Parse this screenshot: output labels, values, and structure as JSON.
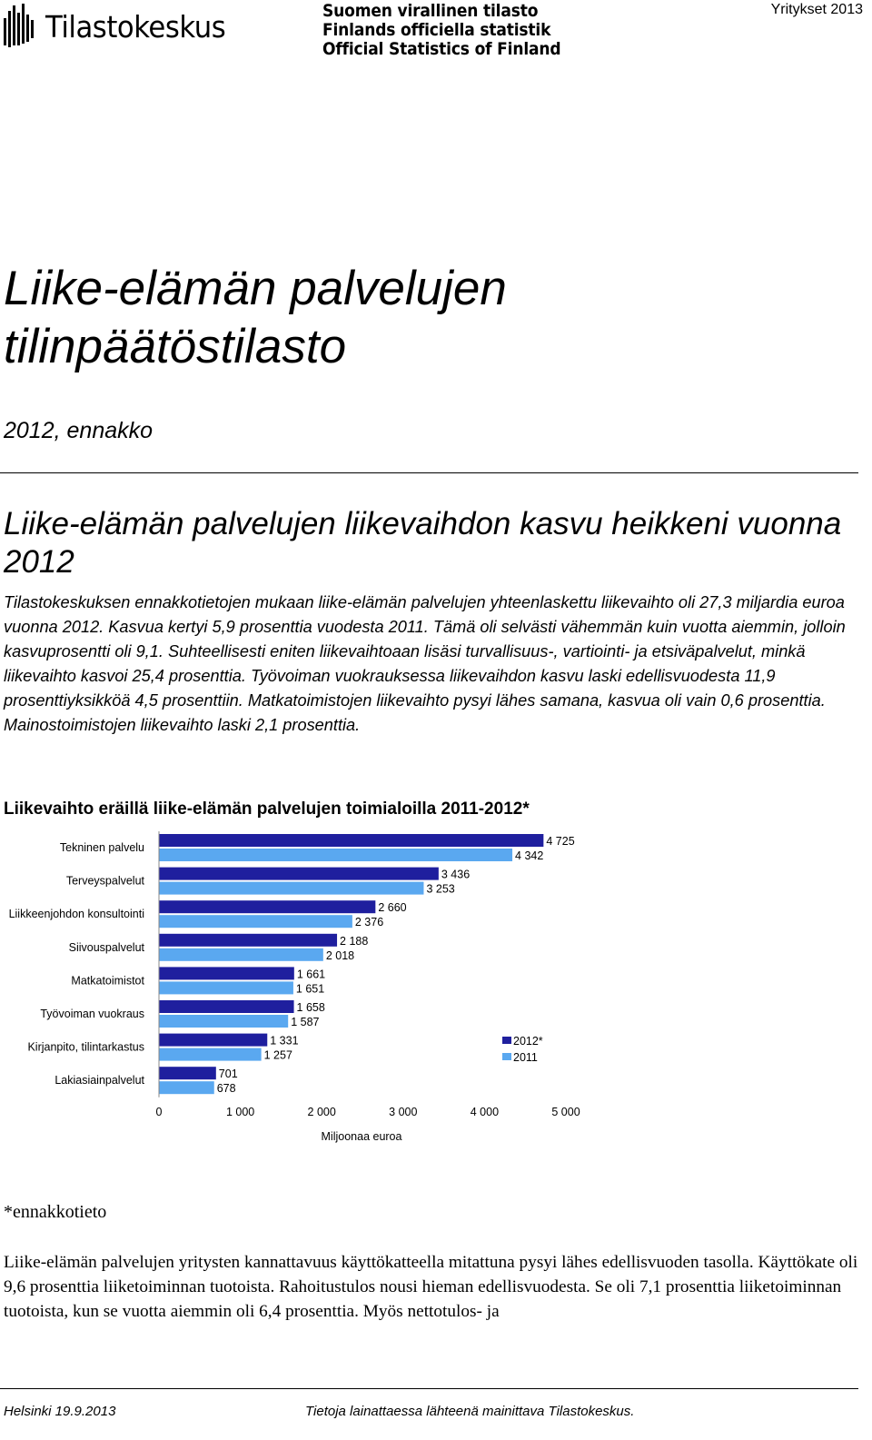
{
  "header": {
    "brand": "Tilastokeskus",
    "official_lines": [
      "Suomen virallinen tilasto",
      "Finlands officiella statistik",
      "Official Statistics of Finland"
    ],
    "series_label": "Yritykset 2013"
  },
  "document": {
    "title": "Liike-elämän palvelujen tilinpäätöstilasto",
    "edition": "2012, ennakko",
    "headline": "Liike-elämän palvelujen liikevaihdon kasvu heikkeni vuonna 2012",
    "lead": "Tilastokeskuksen ennakkotietojen mukaan liike-elämän palvelujen yhteenlaskettu liikevaihto oli 27,3 miljardia euroa vuonna 2012. Kasvua kertyi 5,9 prosenttia vuodesta 2011. Tämä oli selvästi vähemmän kuin vuotta aiemmin, jolloin kasvuprosentti oli 9,1. Suhteellisesti eniten liikevaihtoaan lisäsi turvallisuus-, vartiointi- ja etsiväpalvelut, minkä liikevaihto kasvoi 25,4 prosenttia. Työvoiman vuokrauksessa liikevaihdon kasvu laski edellisvuodesta 11,9 prosenttiyksikköä 4,5 prosenttiin. Matkatoimistojen liikevaihto pysyi lähes samana, kasvua oli vain 0,6 prosenttia. Mainostoimistojen liikevaihto laski 2,1 prosenttia.",
    "footnote": "*ennakkotieto",
    "body": "Liike-elämän palvelujen yritysten kannattavuus käyttökatteella mitattuna pysyi lähes edellisvuoden tasolla. Käyttökate oli 9,6 prosenttia liiketoiminnan tuotoista. Rahoitustulos nousi hieman edellisvuodesta. Se oli 7,1 prosenttia liiketoiminnan tuotoista, kun se vuotta aiemmin oli 6,4 prosenttia. Myös nettotulos- ja"
  },
  "footer": {
    "left": "Helsinki 19.9.2013",
    "right": "Tietoja lainattaessa lähteenä mainittava Tilastokeskus."
  },
  "colors": {
    "series_2012": "#1f1f9e",
    "series_2011": "#5aa8f0"
  },
  "chart_data": {
    "type": "bar",
    "orientation": "horizontal",
    "title": "Liikevaihto eräillä liike-elämän palvelujen toimialoilla 2011-2012*",
    "xlabel": "Miljoonaa euroa",
    "ylabel": "",
    "xlim": [
      0,
      5000
    ],
    "x_ticks": [
      0,
      1000,
      2000,
      3000,
      4000,
      5000
    ],
    "x_tick_labels": [
      "0",
      "1 000",
      "2 000",
      "3 000",
      "4 000",
      "5 000"
    ],
    "grid": false,
    "legend_position": "right",
    "categories": [
      "Tekninen palvelu",
      "Terveyspalvelut",
      "Liikkeenjohdon konsultointi",
      "Siivouspalvelut",
      "Matkatoimistot",
      "Työvoiman vuokraus",
      "Kirjanpito, tilintarkastus",
      "Lakiasiainpalvelut"
    ],
    "series": [
      {
        "name": "2012*",
        "values": [
          4725,
          3436,
          2660,
          2188,
          1661,
          1658,
          1331,
          701
        ],
        "labels": [
          "4 725",
          "3 436",
          "2 660",
          "2 188",
          "1 661",
          "1 658",
          "1 331",
          "701"
        ]
      },
      {
        "name": "2011",
        "values": [
          4342,
          3253,
          2376,
          2018,
          1651,
          1587,
          1257,
          678
        ],
        "labels": [
          "4 342",
          "3 253",
          "2 376",
          "2 018",
          "1 651",
          "1 587",
          "1 257",
          "678"
        ]
      }
    ]
  }
}
